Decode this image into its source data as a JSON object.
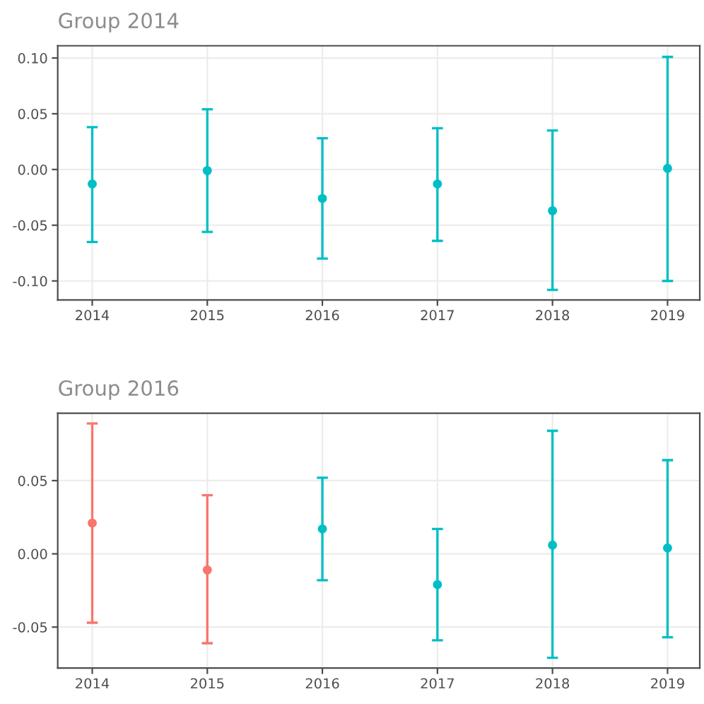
{
  "chart_data": [
    {
      "type": "scatter",
      "title": "Group 2014",
      "x": [
        2014,
        2015,
        2016,
        2017,
        2018,
        2019
      ],
      "xlim": [
        2013.7,
        2019.28
      ],
      "xticks": [
        2014,
        2015,
        2016,
        2017,
        2018,
        2019
      ],
      "ylim": [
        -0.117,
        0.111
      ],
      "yticks": [
        {
          "value": -0.1,
          "label": "-0.10"
        },
        {
          "value": -0.05,
          "label": "-0.05"
        },
        {
          "value": 0,
          "label": "0.00"
        },
        {
          "value": 0.05,
          "label": "0.05"
        },
        {
          "value": 0.1,
          "label": "0.10"
        }
      ],
      "values": [
        -0.013,
        -0.001,
        -0.026,
        -0.013,
        -0.037,
        0.001
      ],
      "errors": [
        [
          -0.065,
          0.038
        ],
        [
          -0.056,
          0.054
        ],
        [
          -0.08,
          0.028
        ],
        [
          -0.064,
          0.037
        ],
        [
          -0.108,
          0.035
        ],
        [
          -0.1,
          0.101
        ]
      ],
      "colors": [
        "#00bfc4",
        "#00bfc4",
        "#00bfc4",
        "#00bfc4",
        "#00bfc4",
        "#00bfc4"
      ],
      "marker": "circle",
      "grid": true
    },
    {
      "type": "scatter",
      "title": "Group 2016",
      "x": [
        2014,
        2015,
        2016,
        2017,
        2018,
        2019
      ],
      "xlim": [
        2013.7,
        2019.28
      ],
      "xticks": [
        2014,
        2015,
        2016,
        2017,
        2018,
        2019
      ],
      "ylim": [
        -0.078,
        0.096
      ],
      "yticks": [
        {
          "value": -0.05,
          "label": "-0.05"
        },
        {
          "value": 0,
          "label": "0.00"
        },
        {
          "value": 0.05,
          "label": "0.05"
        }
      ],
      "values": [
        0.021,
        -0.011,
        0.017,
        -0.021,
        0.006,
        0.004
      ],
      "errors": [
        [
          -0.047,
          0.089
        ],
        [
          -0.061,
          0.04
        ],
        [
          -0.018,
          0.052
        ],
        [
          -0.059,
          0.017
        ],
        [
          -0.071,
          0.084
        ],
        [
          -0.057,
          0.064
        ]
      ],
      "colors": [
        "#f8766d",
        "#f8766d",
        "#00bfc4",
        "#00bfc4",
        "#00bfc4",
        "#00bfc4"
      ],
      "marker": "circle",
      "grid": true
    }
  ]
}
